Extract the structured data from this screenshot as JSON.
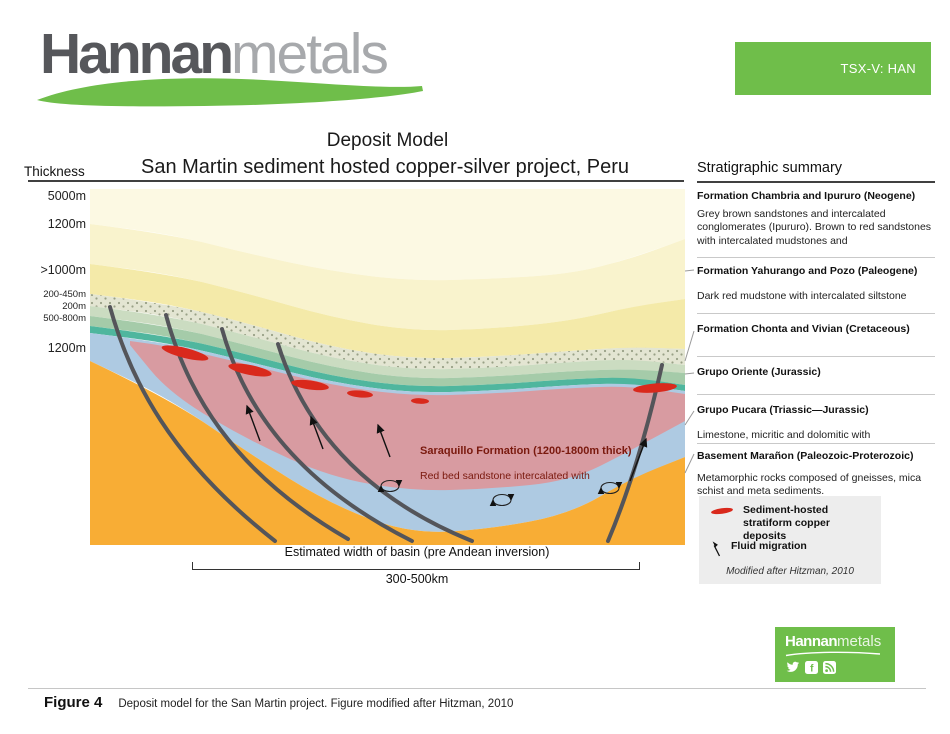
{
  "header": {
    "brand_bold": "Hannan",
    "brand_light": "metals",
    "ticker": "TSX-V: HAN"
  },
  "titles": {
    "main": "Deposit Model",
    "subtitle": "San Martin sediment hosted copper-silver project, Peru"
  },
  "thickness": {
    "label": "Thickness",
    "values": [
      "5000m",
      "1200m",
      ">1000m",
      "200-450m",
      "200m",
      "500-800m",
      "1200m"
    ]
  },
  "diagram": {
    "saraquillo_line1": "Saraquillo Formation (1200-1800m thick)",
    "saraquillo_line2": "Red bed sandstone intercalated with",
    "basin_label": "Estimated width of basin (pre Andean inversion)",
    "basin_value": "300-500km"
  },
  "stratigraphy": {
    "heading": "Stratigraphic summary",
    "entries": [
      {
        "title": "Formation Chambria and Ipururo (Neogene)",
        "desc": "Grey brown sandstones and intercalated conglomerates (Ipururo). Brown to red sandstones with intercalated mudstones and"
      },
      {
        "title": "Formation Yahurango and Pozo (Paleogene)",
        "desc": "Dark red mudstone with intercalated siltstone"
      },
      {
        "title": "Formation Chonta and Vivian (Cretaceous)",
        "desc": ""
      },
      {
        "title": "Grupo Oriente (Jurassic)",
        "desc": ""
      },
      {
        "title": "Grupo Pucara (Triassic—Jurassic)",
        "desc": "Limestone, micritic and dolomitic with"
      },
      {
        "title": "Basement Marañon (Paleozoic-Proterozoic)",
        "desc": "Metamorphic rocks composed of gneisses, mica schist and meta sediments."
      }
    ]
  },
  "legend": {
    "items": [
      {
        "icon": "copper-deposit-icon",
        "label": "Sediment-hosted stratiform copper deposits"
      },
      {
        "icon": "fluid-migration-icon",
        "label": "Fluid migration"
      }
    ],
    "credit": "Modified after Hitzman, 2010"
  },
  "footer": {
    "figure_label": "Figure 4",
    "caption": "Deposit model for the San Martin project. Figure modified after Hitzman, 2010",
    "brand_bold": "Hannan",
    "brand_light": "metals"
  },
  "colors": {
    "brand_green": "#6FBE4A",
    "copper_red": "#D9291C",
    "fault_gray": "#54555A",
    "layers": {
      "neogene_cream": "#FCF9E3",
      "cream_pale": "#F9F3CD",
      "paleogene_yellow": "#F4EAA9",
      "conglomerate_base": "#E3E5D2",
      "green_light": "#CBDCC1",
      "green_mid": "#A5CBA9",
      "teal": "#4FB69E",
      "limestone_blue": "#AECAE2",
      "saraquillo_pink": "#D89BA1",
      "basement_orange": "#F8AD35"
    }
  }
}
